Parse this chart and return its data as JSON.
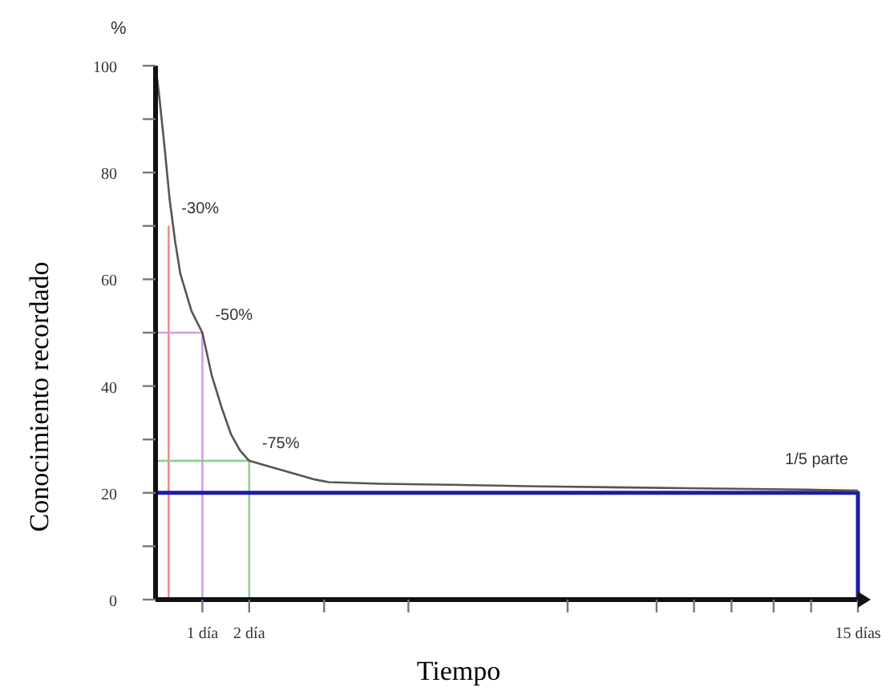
{
  "chart_data": {
    "type": "line",
    "xlabel": "Tiempo",
    "ylabel": "Conocimiento recordado",
    "xlim": [
      0,
      15
    ],
    "ylim": [
      0,
      100
    ],
    "xticks": [
      {
        "value": 1,
        "label": "1 día"
      },
      {
        "value": 2,
        "label": "2 día"
      },
      {
        "value": 3.6,
        "label": null
      },
      {
        "value": 5.4,
        "label": null
      },
      {
        "value": 8.8,
        "label": null
      },
      {
        "value": 10.7,
        "label": null
      },
      {
        "value": 11.5,
        "label": null
      },
      {
        "value": 12.3,
        "label": null
      },
      {
        "value": 13.2,
        "label": null
      },
      {
        "value": 14,
        "label": null
      },
      {
        "value": 15,
        "label": "15 días"
      }
    ],
    "yticks": [
      0,
      {
        "value": 10,
        "label": null
      },
      20,
      {
        "value": 30,
        "label": null
      },
      40,
      {
        "value": 50,
        "label": null
      },
      60,
      {
        "value": 70,
        "label": null
      },
      80,
      {
        "value": 90,
        "label": null
      },
      100
    ],
    "grid": false,
    "marker": "none",
    "line_style": "solid",
    "series": [
      {
        "color": "#f08a8a",
        "x": [
          0.28,
          0.28
        ],
        "values": [
          0,
          70
        ]
      },
      {
        "color": "#d49af0",
        "x": [
          0,
          1,
          1
        ],
        "values": [
          50,
          50,
          0
        ]
      },
      {
        "color": "#90d090",
        "x": [
          0,
          2,
          2
        ],
        "values": [
          26,
          26,
          0
        ]
      },
      {
        "color": "#1c1ca8",
        "x": [
          0,
          15,
          15
        ],
        "values": [
          20,
          20,
          0
        ]
      },
      {
        "color": "#555555",
        "x": [
          0,
          0.07,
          0.19,
          0.3,
          0.42,
          0.53,
          0.77,
          1,
          1.2,
          1.41,
          1.61,
          1.8,
          2,
          2.4,
          3,
          3.4,
          3.7,
          4.8,
          6.3,
          8.2,
          10.1,
          12,
          13.9,
          15
        ],
        "values": [
          100,
          95,
          85,
          75,
          67,
          61,
          54,
          50,
          42,
          36,
          31,
          28,
          26,
          25,
          23.5,
          22.5,
          22,
          21.7,
          21.5,
          21.2,
          21,
          20.8,
          20.6,
          20.4
        ]
      }
    ],
    "annotations": [
      "%",
      {
        "text": "-30%",
        "x": 0.28,
        "y": 70
      },
      {
        "text": "-50%",
        "x": 1,
        "y": 50
      },
      {
        "text": "-75%",
        "x": 2,
        "y": 26
      },
      {
        "text": "1/5 parte",
        "x": 15,
        "y": 20
      }
    ]
  }
}
